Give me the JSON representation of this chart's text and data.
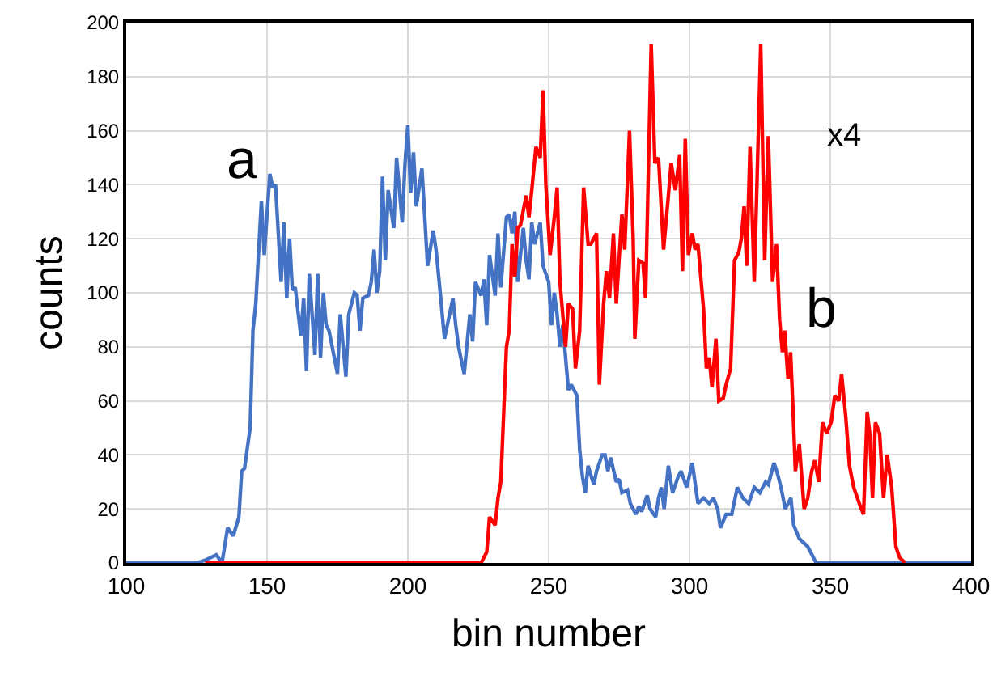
{
  "chart_data": {
    "type": "line",
    "xlabel": "bin number",
    "ylabel": "counts",
    "xlim": [
      100,
      400
    ],
    "ylim": [
      0,
      200
    ],
    "xticks": [
      100,
      150,
      200,
      250,
      300,
      350,
      400
    ],
    "yticks": [
      0,
      20,
      40,
      60,
      80,
      100,
      120,
      140,
      160,
      180,
      200
    ],
    "grid": true,
    "legend": false,
    "marker": "none",
    "line_style": "solid",
    "annotations": [
      "x4"
    ],
    "series": [
      {
        "name": "a",
        "color": "#4472c4",
        "x": [
          100,
          125,
          128,
          132,
          134,
          136,
          138,
          140,
          141,
          142,
          144,
          145,
          146,
          148,
          149,
          151,
          152,
          153,
          155,
          156,
          157,
          158,
          159,
          160,
          162,
          163,
          164,
          165,
          167,
          168,
          169,
          170,
          171,
          172,
          175,
          176,
          178,
          179,
          181,
          182,
          183,
          184,
          186,
          187,
          188,
          189,
          190,
          191,
          192,
          193,
          195,
          196,
          198,
          199,
          200,
          201,
          202,
          203,
          205,
          207,
          209,
          210,
          211.5,
          213,
          214,
          216,
          217,
          218,
          220,
          222,
          223,
          224,
          226,
          227,
          228,
          229,
          231,
          232,
          233,
          235,
          236,
          237,
          238,
          239,
          241,
          242,
          243,
          244,
          245,
          247,
          248,
          250,
          251,
          252,
          253,
          254,
          255,
          257,
          258,
          260,
          261,
          262,
          263,
          264,
          266,
          267,
          269,
          270,
          271,
          272,
          274,
          275,
          276,
          278,
          279,
          281,
          282,
          283,
          285,
          286,
          288,
          289,
          290,
          291,
          292.5,
          294,
          296,
          297,
          299,
          301,
          303,
          305,
          307,
          308.5,
          310,
          311,
          313,
          315,
          317,
          319,
          321,
          323,
          325,
          327,
          328,
          330,
          331,
          332.5,
          334,
          336,
          337,
          339,
          342,
          345,
          351,
          400
        ],
        "values": [
          0,
          0,
          1,
          3,
          0,
          13,
          10,
          17,
          34,
          35,
          50,
          86,
          96,
          134,
          114,
          144,
          139,
          140,
          104,
          126,
          98,
          120,
          101,
          102,
          84,
          98,
          71,
          107,
          77,
          107,
          76,
          100,
          88,
          86,
          70,
          92,
          69,
          92,
          100,
          99,
          86,
          98,
          99,
          104,
          116,
          100,
          108,
          143,
          112,
          138,
          124,
          150,
          126,
          148,
          162,
          137,
          152,
          132,
          146,
          110,
          123,
          116,
          100,
          83,
          88,
          98,
          88,
          80,
          70,
          92,
          82,
          104,
          99,
          105,
          88,
          114,
          99,
          122,
          102,
          128,
          129,
          122,
          130,
          104,
          124,
          112,
          105,
          126,
          118,
          126,
          110,
          104,
          88,
          100,
          92,
          80,
          88,
          64,
          66,
          62,
          42,
          32,
          26,
          36,
          29,
          34,
          40,
          40,
          34,
          39,
          30,
          31,
          26,
          27,
          22,
          18,
          21,
          19,
          25,
          20,
          17,
          24,
          28,
          20,
          36,
          26,
          32,
          34,
          28,
          37,
          22,
          24,
          22,
          24,
          20,
          13,
          18,
          18,
          28,
          24,
          22,
          28,
          26,
          30,
          29,
          37,
          34,
          28,
          20,
          24,
          14,
          9,
          6,
          0,
          0,
          0
        ]
      },
      {
        "name": "b",
        "color": "#ff0000",
        "x": [
          128,
          226,
          228,
          229,
          231,
          232,
          233,
          235,
          236,
          237,
          238,
          239,
          240,
          242,
          243,
          244,
          245.5,
          247,
          248,
          249,
          250.5,
          252,
          253,
          254,
          256,
          257,
          258.5,
          259.5,
          261,
          262.4,
          264,
          265,
          267,
          268,
          269.5,
          270.5,
          271.6,
          273,
          274,
          276,
          277,
          278.7,
          280,
          280.6,
          282,
          283.5,
          284.4,
          286.4,
          287.7,
          289,
          290.8,
          292,
          293.5,
          295,
          296.5,
          297.5,
          298.5,
          299.6,
          301,
          302,
          303,
          305,
          306,
          307,
          308,
          309.4,
          310.4,
          312,
          313,
          314.6,
          316,
          317.5,
          318.4,
          319.4,
          320.3,
          321.5,
          323,
          323.8,
          325.3,
          326.7,
          328,
          329.5,
          330.9,
          332,
          333,
          333.8,
          335,
          335.9,
          336.8,
          337.6,
          339,
          340.7,
          342,
          343.4,
          344.5,
          345.9,
          347.2,
          348.7,
          350.3,
          351.6,
          353,
          354,
          355.5,
          356.8,
          358.3,
          360.3,
          361.8,
          363.1,
          364,
          365,
          366,
          367.5,
          368.9,
          370.2,
          371.8,
          373.3,
          374.6,
          376.6
        ],
        "values": [
          0,
          0,
          4,
          17,
          14,
          24,
          30,
          80,
          86,
          118,
          106,
          124,
          125,
          136,
          128,
          138,
          154,
          150,
          175,
          140,
          114,
          128,
          139,
          104,
          80,
          96,
          94,
          72,
          86,
          139,
          118,
          118,
          122,
          66,
          96,
          108,
          98,
          122,
          96,
          129,
          116,
          160,
          120,
          83,
          112,
          111,
          98,
          192,
          148,
          150,
          116,
          130,
          148,
          138,
          151,
          108,
          157,
          114,
          122,
          116,
          118,
          94,
          72,
          76,
          65,
          83,
          60,
          61,
          66,
          72,
          112,
          115,
          120,
          132,
          110,
          154,
          104,
          134,
          192,
          112,
          158,
          104,
          118,
          90,
          78,
          86,
          68,
          78,
          56,
          34,
          44,
          20,
          24,
          34,
          38,
          30,
          52,
          48,
          52,
          62,
          60,
          70,
          54,
          36,
          28,
          22,
          18,
          56,
          48,
          24,
          52,
          48,
          24,
          40,
          28,
          6,
          2,
          0
        ]
      }
    ]
  }
}
